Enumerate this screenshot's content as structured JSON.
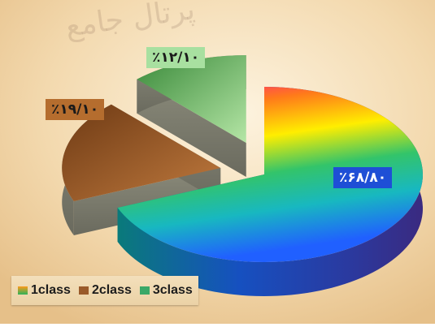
{
  "chart_data": {
    "type": "pie",
    "three_d": true,
    "exploded": true,
    "categories": [
      "1class",
      "2class",
      "3class"
    ],
    "values": [
      68.8,
      19.1,
      12.1
    ],
    "data_labels": [
      "٪۶۸/۸۰",
      "٪۱۹/۱۰",
      "٪۱۲/۱۰"
    ],
    "legend": {
      "placement": "bottom-left",
      "entries": [
        "1class",
        "2class",
        "3class"
      ]
    },
    "colors": {
      "slice_1": [
        "#ff1493",
        "#ffff00",
        "#00c8a0",
        "#2060ff"
      ],
      "slice_2": "#b06a35",
      "slice_3": "#8fc76e",
      "label_1_bg": "#1e4fd6",
      "label_2_bg": "#b56d2e",
      "label_3_bg": "#a8e0a0"
    }
  },
  "watermark": "پرتال جامع",
  "legend_swatch_colors": [
    "#e89a2e",
    "#9a5a2a",
    "#3aa868"
  ]
}
